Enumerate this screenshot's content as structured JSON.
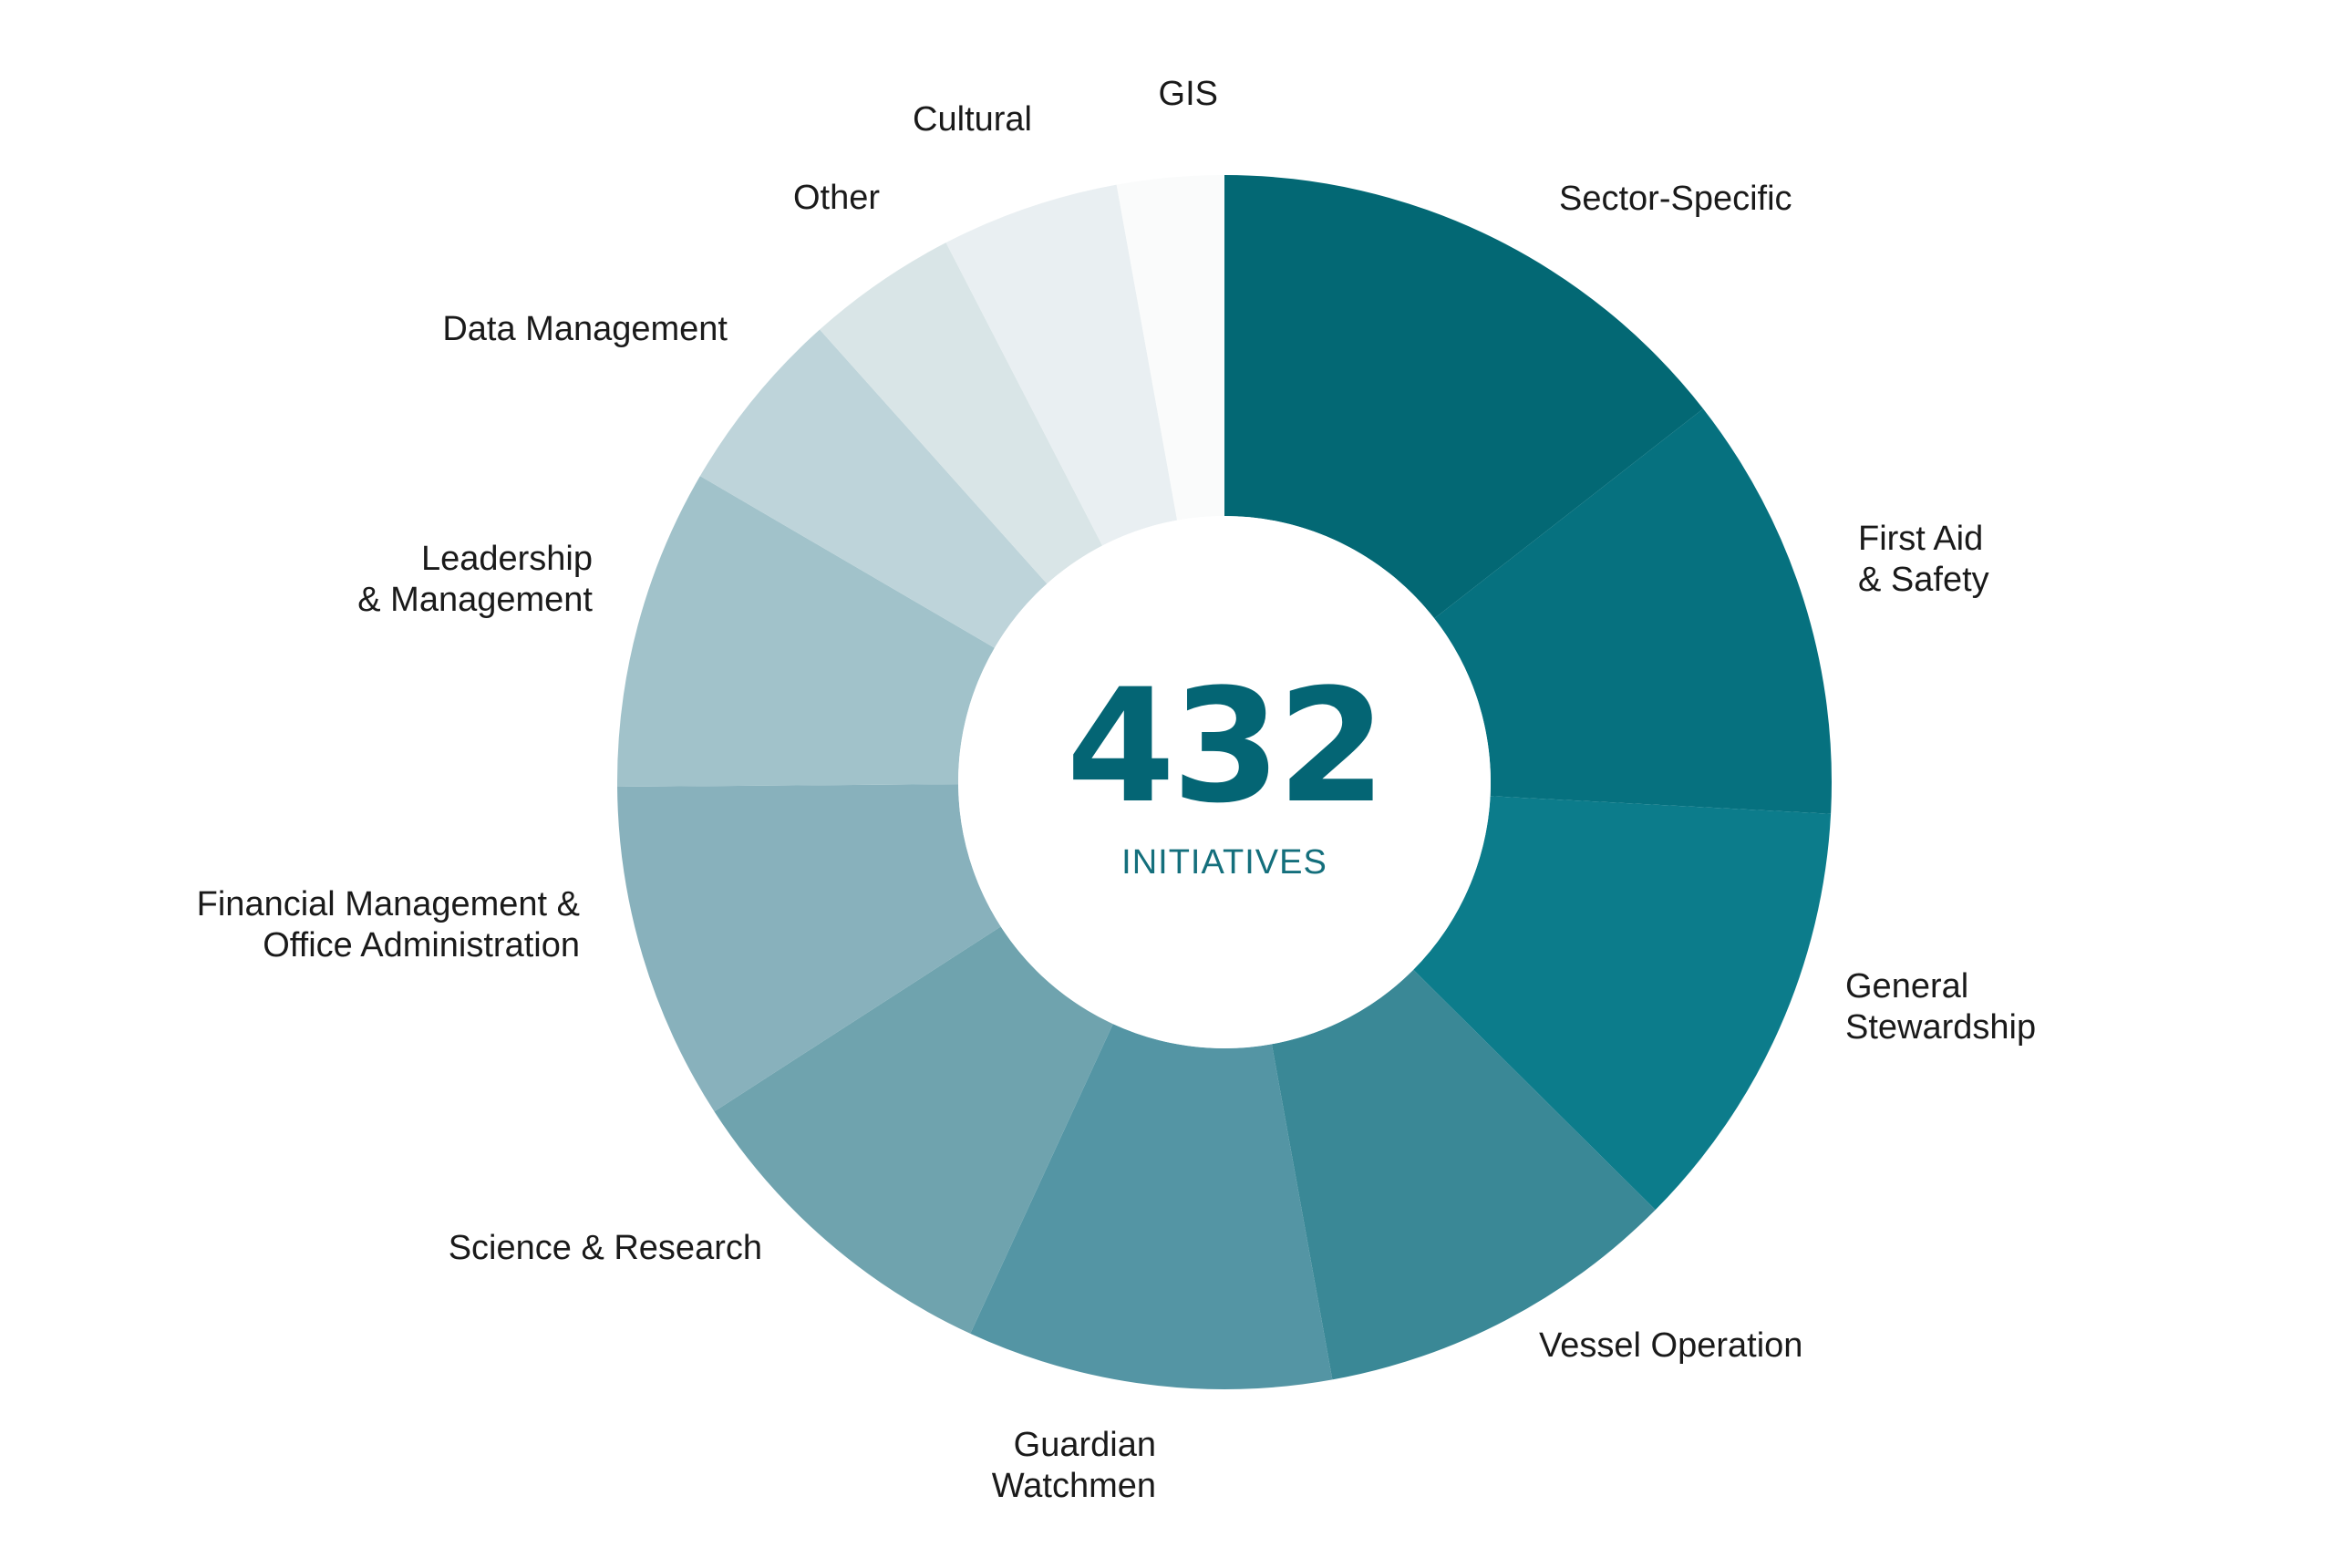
{
  "chart_data": {
    "type": "pie",
    "variant": "donut",
    "center_value": "432",
    "center_label": "INITIATIVES",
    "total": 432,
    "slices": [
      {
        "label": [
          "Sector-Specific"
        ],
        "value": 61,
        "color": "#036874"
      },
      {
        "label": [
          "First Aid",
          "& Safety"
        ],
        "value": 48,
        "color": "#06717f"
      },
      {
        "label": [
          "General",
          "Stewardship"
        ],
        "value": 49,
        "color": "#0c7c8b"
      },
      {
        "label": [
          "Vessel Operation"
        ],
        "value": 41,
        "color": "#3a8896"
      },
      {
        "label": [
          "Guardian",
          "Watchmen"
        ],
        "value": 41,
        "color": "#5495a4"
      },
      {
        "label": [
          "Science & Research"
        ],
        "value": 38,
        "color": "#6fa3ae"
      },
      {
        "label": [
          "Financial Management &",
          "Office Administration"
        ],
        "value": 38,
        "color": "#88b1bc"
      },
      {
        "label": [
          "Leadership",
          "& Management"
        ],
        "value": 36,
        "color": "#a1c2ca"
      },
      {
        "label": [
          "Data Management"
        ],
        "value": 21,
        "color": "#bed4da"
      },
      {
        "label": [
          "Other"
        ],
        "value": 17,
        "color": "#d9e5e7"
      },
      {
        "label": [
          "Cultural"
        ],
        "value": 20,
        "color": "#e9eff2"
      },
      {
        "label": [
          "GIS"
        ],
        "value": 12,
        "color": "#fafbfb"
      }
    ],
    "legend": "labels-around-ring",
    "accent_color": "#046574",
    "label_color": "#1a1a1a",
    "center_label_color": "#146f7c"
  }
}
